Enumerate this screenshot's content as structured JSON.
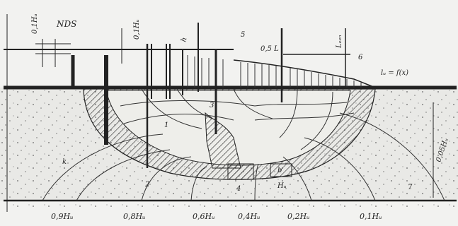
{
  "labels": {
    "nds": "NDS",
    "top_left": "0,1Hᵤ",
    "top_mid": "0,1Hᵤ",
    "h_mark": "h",
    "five": "5",
    "l_half": "0,5 L",
    "l_gen": "Lₑₑₙ",
    "six": "6",
    "func": "lᵤ = f(x)",
    "k_label": "k",
    "right_vert": "0,05Hᵤ",
    "one": "1",
    "three": "3",
    "two": "2",
    "four": "4",
    "seven": "7",
    "b_mid": "b",
    "hb": "Hᵤ",
    "bottom": [
      "0,9Hᵤ",
      "0,8Hᵤ",
      "0,6Hᵤ",
      "0,4Hᵤ",
      "0,2Hᵤ",
      "0,1Hᵤ"
    ]
  }
}
